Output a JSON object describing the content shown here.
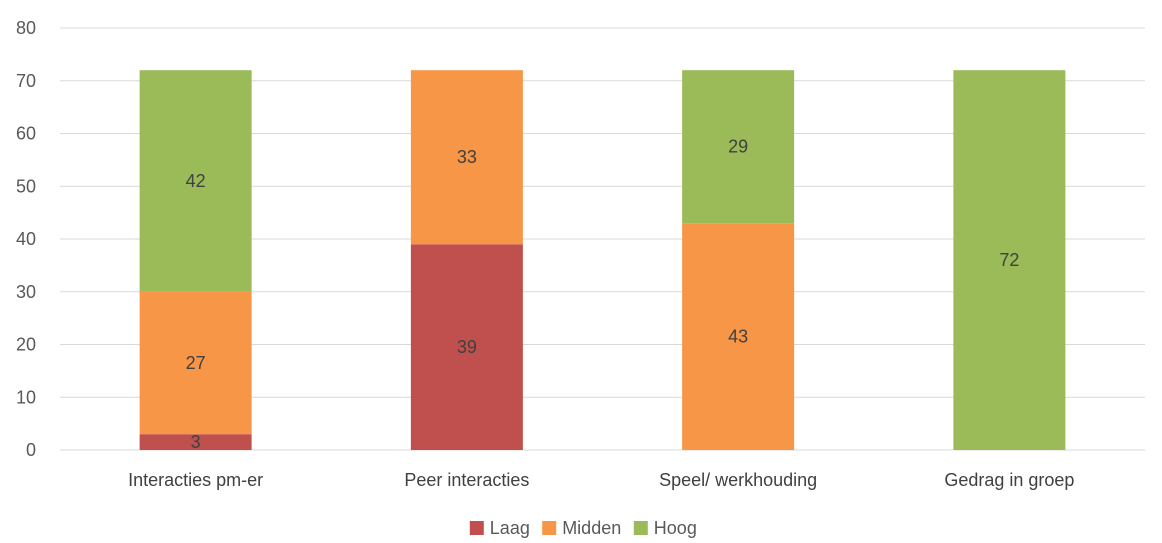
{
  "chart_data": {
    "type": "bar",
    "stacked": true,
    "categories": [
      "Interacties pm-er",
      "Peer interacties",
      "Speel/ werkhouding",
      "Gedrag in groep"
    ],
    "series": [
      {
        "name": "Laag",
        "color": "#c0504d",
        "values": [
          3,
          39,
          0,
          0
        ]
      },
      {
        "name": "Midden",
        "color": "#f79646",
        "values": [
          27,
          33,
          43,
          0
        ]
      },
      {
        "name": "Hoog",
        "color": "#9bbb59",
        "values": [
          42,
          0,
          29,
          72
        ]
      }
    ],
    "ylim": [
      0,
      80
    ],
    "yticks": [
      0,
      10,
      20,
      30,
      40,
      50,
      60,
      70,
      80
    ],
    "grid": true,
    "legend_position": "bottom",
    "title": "",
    "xlabel": "",
    "ylabel": ""
  }
}
